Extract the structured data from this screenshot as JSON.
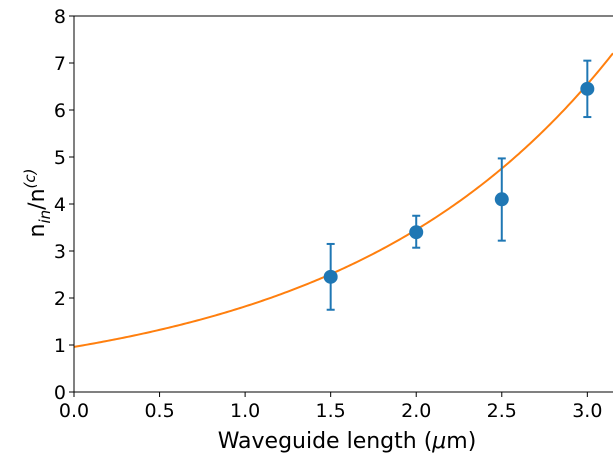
{
  "chart_data": {
    "type": "scatter",
    "xlabel": {
      "main": "Waveguide length (",
      "mu": "μ",
      "unit": "m)"
    },
    "ylabel": {
      "n1": "n",
      "sub": "in",
      "slash": "/n",
      "sup": "(c)"
    },
    "xlim": [
      0.0,
      3.15
    ],
    "ylim": [
      0,
      8
    ],
    "x_ticks": [
      "0.0",
      "0.5",
      "1.0",
      "1.5",
      "2.0",
      "2.5",
      "3.0"
    ],
    "y_ticks": [
      "0",
      "1",
      "2",
      "3",
      "4",
      "5",
      "6",
      "7",
      "8"
    ],
    "grid": false,
    "series": [
      {
        "type": "errorbar",
        "color": "#1f77b4",
        "points": [
          {
            "x": 1.5,
            "y": 2.45,
            "yerr_low": 1.75,
            "yerr_high": 3.15
          },
          {
            "x": 2.0,
            "y": 3.4,
            "yerr_low": 3.07,
            "yerr_high": 3.75
          },
          {
            "x": 2.5,
            "y": 4.1,
            "yerr_low": 3.22,
            "yerr_high": 4.97
          },
          {
            "x": 3.0,
            "y": 6.45,
            "yerr_low": 5.85,
            "yerr_high": 7.05
          }
        ]
      },
      {
        "type": "line",
        "color": "#ff7f0e",
        "fit": {
          "a": 0.96,
          "b": 0.64
        }
      }
    ]
  }
}
